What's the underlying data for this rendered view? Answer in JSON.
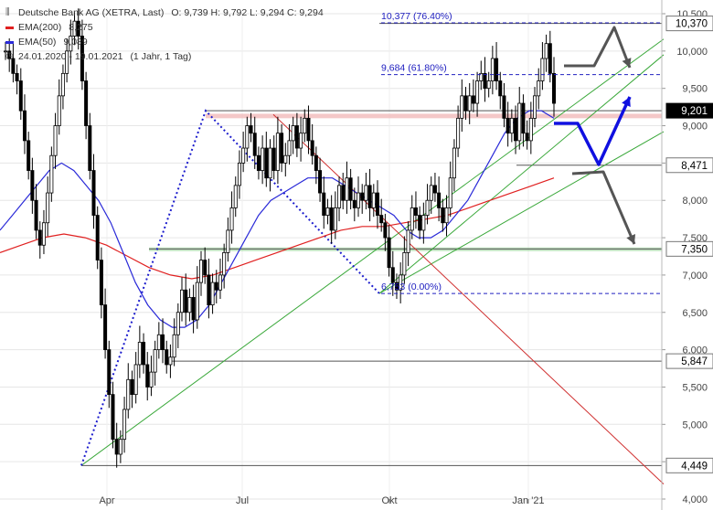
{
  "header": {
    "title": "Deutsche Bank AG (XETRA, Last)",
    "ohlc": "O: 9,739  H: 9,792  L: 9,294  C: 9,294",
    "ema200_label": "EMA(200)",
    "ema200_value": "8,275",
    "ema50_label": "EMA(50)",
    "ema50_value": "9,089",
    "period": "24.01.2020 - 19.01.2021",
    "interval": "(1 Jahr, 1 Tag)"
  },
  "colors": {
    "ema200": "#e02020",
    "ema50": "#2a2ad8",
    "price": "#000000",
    "support_zone": "#8fd08f",
    "resistance_zone": "#f0b0b0",
    "trend_green": "#3aa83a",
    "trend_red": "#d03030",
    "arrow_blue": "#1010e0",
    "arrow_gray": "#555555"
  },
  "chart_data": {
    "type": "candlestick",
    "x_ticks": [
      "Apr",
      "Jul",
      "Okt",
      "Jan '21"
    ],
    "y_ticks": [
      "4,000",
      "4,500",
      "5,000",
      "5,500",
      "6,000",
      "6,500",
      "7,000",
      "7,500",
      "8,000",
      "8,500",
      "9,000",
      "9,500",
      "10,000",
      "10,500"
    ],
    "ylim": [
      4.0,
      10.6
    ],
    "price_levels": [
      {
        "value": 10.37,
        "label": "10,370"
      },
      {
        "value": 9.201,
        "label": "9,201"
      },
      {
        "value": 8.471,
        "label": "8,471"
      },
      {
        "value": 7.35,
        "label": "7,350"
      },
      {
        "value": 5.847,
        "label": "5,847"
      },
      {
        "value": 4.449,
        "label": "4,449"
      }
    ],
    "fib_levels": [
      {
        "value": 10.377,
        "label": "10,377 (76.40%)"
      },
      {
        "value": 9.684,
        "label": "9,684 (61.80%)"
      },
      {
        "value": 6.753,
        "label": "6,753 (0.00%)"
      }
    ],
    "close": [
      10.0,
      9.9,
      9.7,
      9.6,
      9.2,
      8.8,
      8.4,
      8.0,
      7.6,
      7.4,
      7.7,
      8.1,
      8.6,
      9.0,
      9.4,
      9.7,
      10.0,
      10.2,
      10.4,
      10.2,
      9.6,
      9.0,
      8.4,
      7.8,
      7.2,
      6.6,
      6.0,
      5.4,
      4.8,
      4.6,
      4.8,
      5.2,
      5.6,
      5.4,
      5.8,
      6.1,
      5.8,
      5.5,
      5.7,
      6.0,
      6.2,
      6.0,
      5.8,
      5.9,
      6.2,
      6.5,
      6.8,
      6.5,
      6.7,
      6.4,
      6.9,
      7.2,
      7.0,
      6.6,
      6.9,
      6.8,
      7.0,
      7.3,
      7.6,
      7.9,
      8.2,
      8.5,
      8.7,
      9.0,
      8.9,
      8.6,
      8.4,
      8.7,
      8.3,
      8.7,
      8.4,
      8.9,
      8.5,
      8.6,
      8.8,
      9.0,
      8.7,
      8.9,
      9.1,
      8.8,
      8.6,
      8.4,
      8.1,
      7.8,
      7.9,
      7.6,
      7.9,
      8.2,
      8.0,
      8.3,
      8.0,
      7.9,
      8.1,
      8.0,
      8.2,
      7.9,
      8.1,
      7.8,
      7.7,
      7.5,
      7.1,
      6.9,
      6.8,
      7.0,
      7.3,
      7.6,
      7.9,
      7.8,
      7.6,
      7.8,
      8.0,
      8.2,
      8.1,
      7.9,
      7.7,
      7.9,
      8.3,
      8.7,
      9.1,
      9.4,
      9.2,
      9.4,
      9.3,
      9.6,
      9.7,
      9.5,
      9.6,
      9.9,
      9.6,
      9.4,
      9.1,
      8.9,
      9.1,
      8.8,
      9.3,
      8.9,
      8.8,
      9.1,
      9.4,
      9.6,
      9.9,
      10.1,
      9.7,
      9.3
    ],
    "ema50": [
      7.6,
      7.8,
      8.0,
      8.2,
      8.4,
      8.5,
      8.4,
      8.2,
      8.0,
      7.7,
      7.3,
      6.9,
      6.6,
      6.4,
      6.3,
      6.3,
      6.4,
      6.6,
      6.9,
      7.2,
      7.5,
      7.8,
      8.0,
      8.1,
      8.2,
      8.3,
      8.3,
      8.3,
      8.2,
      8.1,
      8.0,
      7.9,
      7.8,
      7.6,
      7.5,
      7.5,
      7.6,
      7.8,
      8.0,
      8.3,
      8.6,
      8.9,
      9.1,
      9.2,
      9.2,
      9.1
    ],
    "ema200": [
      7.3,
      7.4,
      7.5,
      7.55,
      7.5,
      7.4,
      7.25,
      7.1,
      7.0,
      6.95,
      7.0,
      7.1,
      7.2,
      7.3,
      7.4,
      7.5,
      7.6,
      7.65,
      7.65,
      7.7,
      7.75,
      7.8,
      7.9,
      8.0,
      8.1,
      8.2,
      8.3
    ]
  }
}
